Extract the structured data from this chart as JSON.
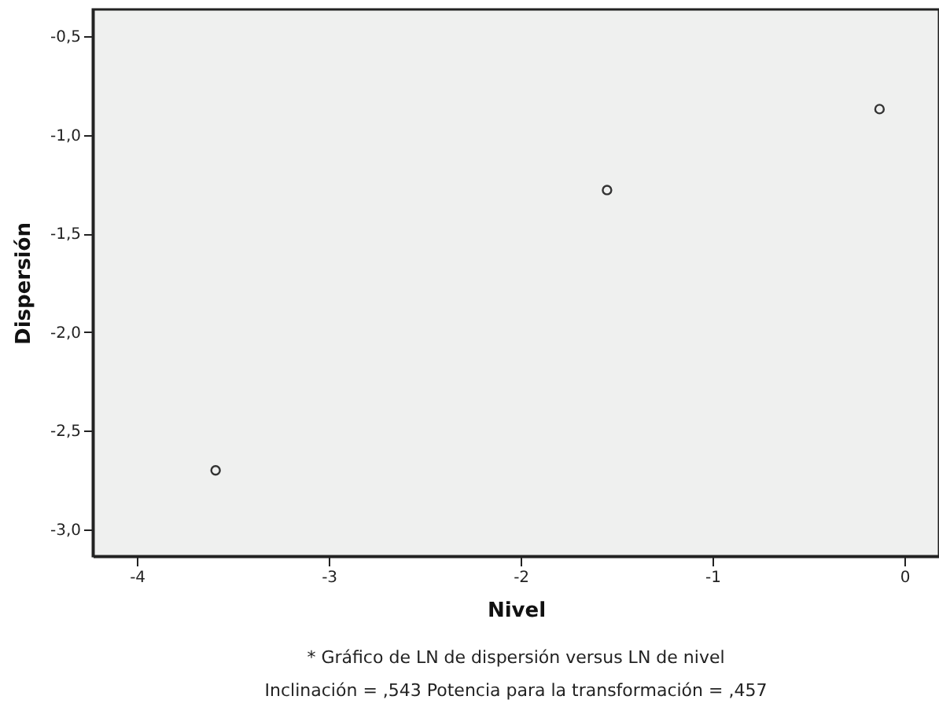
{
  "chart_data": {
    "type": "scatter",
    "xlabel": "Nivel",
    "ylabel": "Dispersión",
    "x": [
      -3.59,
      -1.55,
      -0.13
    ],
    "series": [
      {
        "color": "#333333",
        "values": [
          -2.7,
          -1.28,
          -0.87
        ]
      }
    ],
    "xlim": [
      -4.23,
      0.18
    ],
    "xticks": [
      -4,
      -3,
      -2,
      -1,
      0
    ],
    "ylim": [
      -3.135,
      -0.365
    ],
    "yticks": [
      {
        "value": -3.0,
        "label": "-3,0"
      },
      {
        "value": -2.5,
        "label": "-2,5"
      },
      {
        "value": -2.0,
        "label": "-2,0"
      },
      {
        "value": -1.5,
        "label": "-1,5"
      },
      {
        "value": -1.0,
        "label": "-1,0"
      },
      {
        "value": -0.5,
        "label": "-0,5"
      }
    ],
    "grid": false,
    "marker": "circle",
    "annotations": [
      "* Gráfico de LN de dispersión versus LN de nivel",
      "Inclinación = ,543 Potencia para la transformación = ,457"
    ]
  }
}
